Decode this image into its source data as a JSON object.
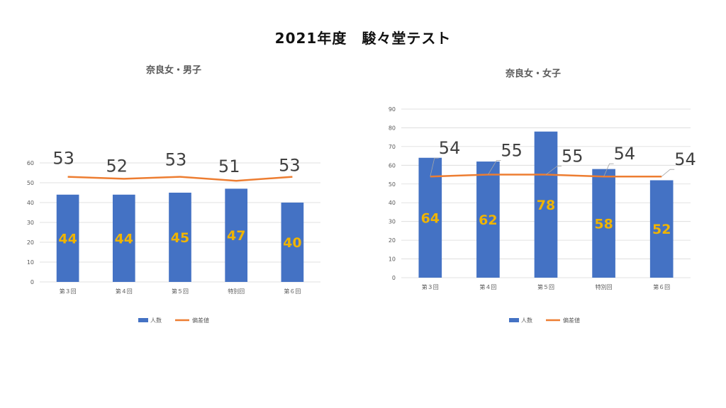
{
  "page_title": "2021年度　駿々堂テスト",
  "legend": {
    "bars": "人数",
    "line": "偏差値"
  },
  "colors": {
    "bar": "#4472c4",
    "line": "#ed7d31",
    "bar_label": "#f0b400",
    "line_label": "#404040",
    "grid": "#d9d9d9"
  },
  "chart_data": [
    {
      "type": "bar",
      "title": "奈良女・男子",
      "categories": [
        "第３回",
        "第４回",
        "第５回",
        "特別回",
        "第６回"
      ],
      "series": [
        {
          "name": "人数",
          "type": "bar",
          "values": [
            44,
            44,
            45,
            47,
            40
          ]
        },
        {
          "name": "偏差値",
          "type": "line",
          "values": [
            53,
            52,
            53,
            51,
            53
          ]
        }
      ],
      "ylim": [
        0,
        60
      ],
      "yticks": [
        0,
        10,
        20,
        30,
        40,
        50,
        60
      ],
      "grid": true,
      "legend_position": "bottom"
    },
    {
      "type": "bar",
      "title": "奈良女・女子",
      "categories": [
        "第３回",
        "第４回",
        "第５回",
        "特別回",
        "第６回"
      ],
      "series": [
        {
          "name": "人数",
          "type": "bar",
          "values": [
            64,
            62,
            78,
            58,
            52
          ]
        },
        {
          "name": "偏差値",
          "type": "line",
          "values": [
            54,
            55,
            55,
            54,
            54
          ]
        }
      ],
      "ylim": [
        0,
        90
      ],
      "yticks": [
        0,
        10,
        20,
        30,
        40,
        50,
        60,
        70,
        80,
        90
      ],
      "grid": true,
      "legend_position": "bottom"
    }
  ]
}
